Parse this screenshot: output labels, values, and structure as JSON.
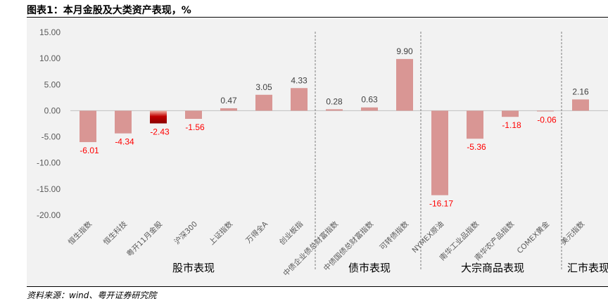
{
  "title": "图表1：本月金股及大类资产表现，%",
  "source": "资料来源：wind、粤开证券研究院",
  "colors": {
    "bar": "#d99694",
    "highlight": "#c00000",
    "plot_background": "#f2f2f2",
    "negative_label": "#ff0000",
    "positive_label": "#404040",
    "axis_text": "#595959",
    "divider": "#7f7f7f"
  },
  "chart_data": {
    "type": "bar",
    "ylim": [
      -20,
      15
    ],
    "yticks": [
      15,
      10,
      5,
      0,
      -5,
      -10,
      -15,
      -20
    ],
    "ytick_labels": [
      "15.00",
      "10.00",
      "5.00",
      "0.00",
      "-5.00",
      "-10.00",
      "-15.00",
      "-20.00"
    ],
    "categories": [
      "恒生指数",
      "恒生科技",
      "粤开11月金股",
      "沪深300",
      "上证指数",
      "万得全A",
      "创业板指",
      "中债企业债总财富指数",
      "中债国债总财富指数",
      "可转债指数",
      "NYMEX原油",
      "南华工业品指数",
      "南华农产品指数",
      "COMEX黄金",
      "美元指数"
    ],
    "values": [
      -6.01,
      -4.34,
      -2.43,
      -1.56,
      0.47,
      3.05,
      4.33,
      0.28,
      0.63,
      9.9,
      -16.17,
      -5.36,
      -1.18,
      -0.06,
      2.16
    ],
    "value_labels": [
      "-6.01",
      "-4.34",
      "-2.43",
      "-1.56",
      "0.47",
      "3.05",
      "4.33",
      "0.28",
      "0.63",
      "9.90",
      "-16.17",
      "-5.36",
      "-1.18",
      "-0.06",
      "2.16"
    ],
    "highlight_index": 2,
    "groups": [
      {
        "label": "股市表现",
        "start": 0,
        "end": 6
      },
      {
        "label": "债市表现",
        "start": 7,
        "end": 9
      },
      {
        "label": "大宗商品表现",
        "start": 10,
        "end": 13
      },
      {
        "label": "汇市表现",
        "start": 14,
        "end": 14
      }
    ]
  }
}
